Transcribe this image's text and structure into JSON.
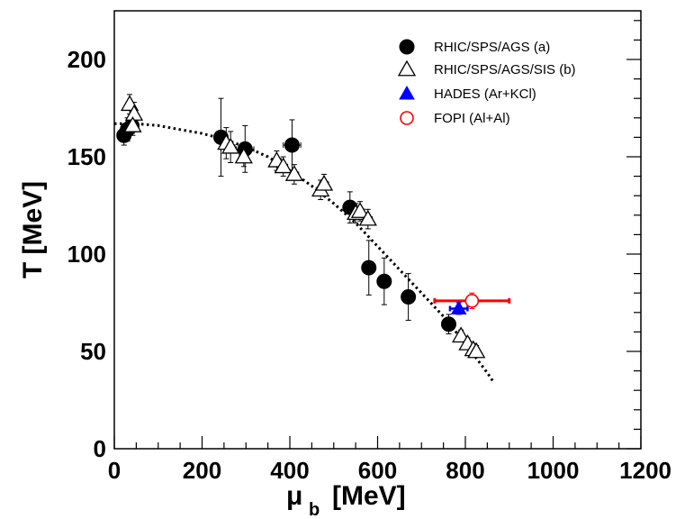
{
  "chart_data": {
    "type": "scatter",
    "xlabel": "μ",
    "xlabel_sub": "b",
    "xlabel_unit": "[MeV]",
    "ylabel": "T [MeV]",
    "xlim": [
      0,
      1200
    ],
    "ylim": [
      0,
      225
    ],
    "x_ticks": [
      0,
      200,
      400,
      600,
      800,
      1000,
      1200
    ],
    "y_ticks": [
      0,
      50,
      100,
      150,
      200
    ],
    "grid": false,
    "legend_position": "top-right",
    "series": [
      {
        "name": "RHIC/SPS/AGS (a)",
        "marker": "filled-circle",
        "color": "#000000",
        "points": [
          {
            "x": 22,
            "y": 161,
            "xerr": 0,
            "yerr": 5
          },
          {
            "x": 30,
            "y": 164,
            "xerr": 0,
            "yerr": 6
          },
          {
            "x": 40,
            "y": 166,
            "xerr": 0,
            "yerr": 4
          },
          {
            "x": 243,
            "y": 160,
            "xerr": 12,
            "yerr": 20
          },
          {
            "x": 298,
            "y": 154,
            "xerr": 20,
            "yerr": 12
          },
          {
            "x": 405,
            "y": 156,
            "xerr": 20,
            "yerr": 13
          },
          {
            "x": 537,
            "y": 124,
            "xerr": 12,
            "yerr": 8
          },
          {
            "x": 580,
            "y": 93,
            "xerr": 10,
            "yerr": 14
          },
          {
            "x": 615,
            "y": 86,
            "xerr": 10,
            "yerr": 12
          },
          {
            "x": 670,
            "y": 78,
            "xerr": 12,
            "yerr": 12
          },
          {
            "x": 762,
            "y": 64,
            "xerr": 15,
            "yerr": 5
          }
        ]
      },
      {
        "name": "RHIC/SPS/AGS/SIS (b)",
        "marker": "open-triangle",
        "color": "#000000",
        "points": [
          {
            "x": 35,
            "y": 177,
            "xerr": 0,
            "yerr": 5
          },
          {
            "x": 45,
            "y": 172,
            "xerr": 0,
            "yerr": 6
          },
          {
            "x": 42,
            "y": 166,
            "xerr": 0,
            "yerr": 5
          },
          {
            "x": 255,
            "y": 157,
            "xerr": 10,
            "yerr": 8
          },
          {
            "x": 265,
            "y": 155,
            "xerr": 10,
            "yerr": 8
          },
          {
            "x": 295,
            "y": 150,
            "xerr": 10,
            "yerr": 5
          },
          {
            "x": 370,
            "y": 148,
            "xerr": 10,
            "yerr": 5
          },
          {
            "x": 385,
            "y": 145,
            "xerr": 10,
            "yerr": 5
          },
          {
            "x": 410,
            "y": 141,
            "xerr": 10,
            "yerr": 5
          },
          {
            "x": 470,
            "y": 133,
            "xerr": 10,
            "yerr": 5
          },
          {
            "x": 478,
            "y": 136,
            "xerr": 10,
            "yerr": 5
          },
          {
            "x": 550,
            "y": 121,
            "xerr": 10,
            "yerr": 5
          },
          {
            "x": 560,
            "y": 122,
            "xerr": 10,
            "yerr": 5
          },
          {
            "x": 578,
            "y": 118,
            "xerr": 10,
            "yerr": 5
          },
          {
            "x": 790,
            "y": 58,
            "xerr": 8,
            "yerr": 3
          },
          {
            "x": 805,
            "y": 54,
            "xerr": 8,
            "yerr": 3
          },
          {
            "x": 818,
            "y": 51,
            "xerr": 8,
            "yerr": 3
          },
          {
            "x": 825,
            "y": 50,
            "xerr": 8,
            "yerr": 3
          }
        ]
      },
      {
        "name": "HADES (Ar+KCl)",
        "marker": "filled-triangle",
        "color": "#0000ff",
        "points": [
          {
            "x": 785,
            "y": 72,
            "xerr": 20,
            "yerr": 3
          }
        ]
      },
      {
        "name": "FOPI (Al+Al)",
        "marker": "open-circle",
        "color": "#ff0000",
        "points": [
          {
            "x": 815,
            "y": 76,
            "xerr": 85,
            "yerr": 4
          }
        ]
      }
    ],
    "fit_curve": {
      "style": "dotted",
      "color": "#000000",
      "x": [
        0,
        50,
        100,
        150,
        200,
        250,
        300,
        350,
        400,
        450,
        500,
        550,
        600,
        650,
        700,
        750,
        800,
        850,
        865
      ],
      "y": [
        167,
        167,
        166,
        164,
        162,
        159,
        155,
        150,
        143,
        135,
        126,
        116,
        104,
        92,
        80,
        68,
        54,
        39,
        34
      ]
    }
  }
}
